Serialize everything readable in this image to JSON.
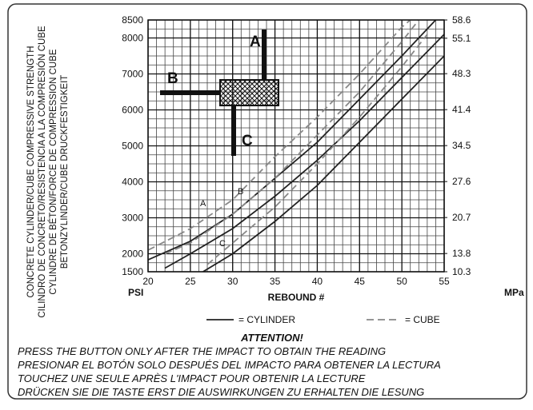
{
  "chart_data": {
    "type": "line",
    "ylabel_lines": [
      "CONCRETE CYLINDER/CUBE COMPRESSIVE STRENGTH",
      "CILINDRO DE CONCRETO/RESISTENCIA A LA COMPRESIÓN CUBE",
      "CYLINDRE DE BÉTON/FORCE DE COMPRESSION CUBE",
      "BETONZYLINDER/CUBE DRUCKFESTIGKEIT"
    ],
    "ylabel": "PSI",
    "y2label": "MPa",
    "xlabel": "REBOUND #",
    "xlim": [
      20,
      55
    ],
    "xticks": [
      20,
      25,
      30,
      35,
      40,
      45,
      50,
      55
    ],
    "ylim": [
      1500,
      8500
    ],
    "yticks": [
      1500,
      2000,
      3000,
      4000,
      5000,
      6000,
      7000,
      8000,
      8500
    ],
    "y2lim": [
      10.3,
      58.6
    ],
    "y2ticks": [
      10.3,
      13.8,
      20.7,
      27.6,
      34.5,
      41.4,
      48.3,
      55.1,
      58.6
    ],
    "grid": true,
    "xgrid_step": 1,
    "ygrid_step": 250,
    "series": [
      {
        "x": [
          20,
          25,
          30,
          35,
          40,
          45,
          50,
          54
        ],
        "values": [
          1830,
          2350,
          3100,
          4100,
          5100,
          6300,
          7500,
          8500
        ],
        "color": "#222222",
        "dash": false
      },
      {
        "x": [
          22,
          25,
          30,
          35,
          40,
          45,
          50,
          55
        ],
        "values": [
          1600,
          2000,
          2700,
          3600,
          4600,
          5700,
          6900,
          8100
        ],
        "color": "#222222",
        "dash": false
      },
      {
        "x": [
          26.5,
          30,
          35,
          40,
          45,
          50,
          55
        ],
        "values": [
          1500,
          2000,
          2900,
          3900,
          5100,
          6300,
          7500
        ],
        "color": "#222222",
        "dash": false
      },
      {
        "x": [
          20,
          25,
          30,
          35,
          40,
          45,
          50,
          51
        ],
        "values": [
          2100,
          2700,
          3500,
          4700,
          5800,
          7000,
          8300,
          8500
        ],
        "color": "#888888",
        "dash": true
      },
      {
        "x": [
          22,
          25,
          30,
          35,
          40,
          45,
          50,
          52
        ],
        "values": [
          2000,
          2300,
          3100,
          4100,
          5300,
          6500,
          7900,
          8500
        ],
        "color": "#888888",
        "dash": true
      },
      {
        "x": [
          27,
          30,
          35,
          40,
          45,
          50,
          53
        ],
        "values": [
          1700,
          2300,
          3300,
          4500,
          5800,
          7200,
          8100
        ],
        "color": "#888888",
        "dash": true
      }
    ],
    "curve_labels": [
      "A",
      "B",
      "C"
    ],
    "diagram_labels": [
      "A",
      "B",
      "C"
    ],
    "legend": [
      {
        "label": "= CYLINDER",
        "dash": false,
        "color": "#222222"
      },
      {
        "label": "= CUBE",
        "dash": true,
        "color": "#888888"
      }
    ],
    "attention_title": "ATTENTION!",
    "attention_lines": [
      "PRESS THE BUTTON ONLY AFTER THE IMPACT TO OBTAIN THE READING",
      "PRESIONAR EL BOTÓN SOLO DESPUÉS DEL IMPACTO PARA OBTENER LA LECTURA",
      "TOUCHEZ UNE SEULE APRÈS L'IMPACT POUR OBTENIR LA LECTURE",
      "DRÜCKEN SIE DIE TASTE ERST DIE AUSWIRKUNGEN ZU ERHALTEN DIE LESUNG"
    ]
  }
}
